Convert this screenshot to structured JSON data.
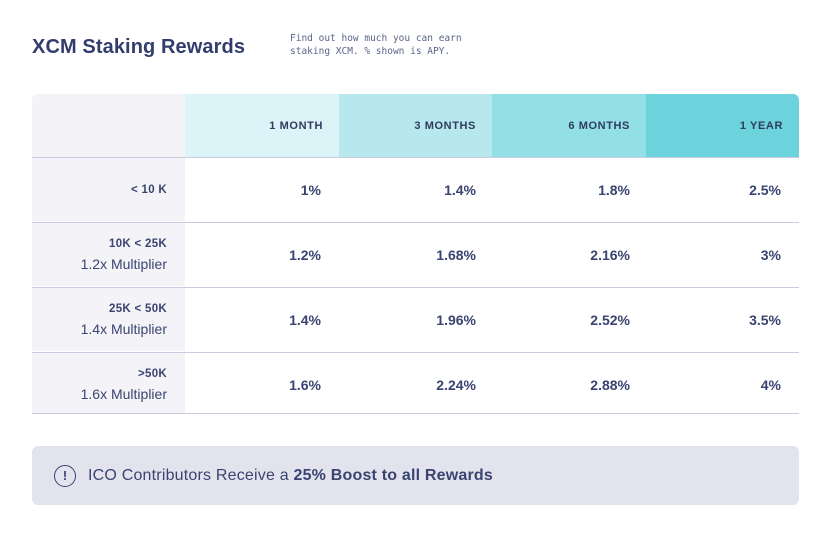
{
  "header": {
    "title": "XCM Staking Rewards",
    "subtitle_line1": "Find out how much you can earn",
    "subtitle_line2": "staking XCM. % shown is APY."
  },
  "table": {
    "columns": [
      "1 MONTH",
      "3 MONTHS",
      "6 MONTHS",
      "1 YEAR"
    ],
    "column_colors": [
      "#dcf4f7",
      "#b7e8ee",
      "#93dfe6",
      "#6cd2dc"
    ],
    "rows": [
      {
        "range": "< 10 K",
        "multiplier": "",
        "values": [
          "1%",
          "1.4%",
          "1.8%",
          "2.5%"
        ]
      },
      {
        "range": "10K < 25K",
        "multiplier": "1.2x Multiplier",
        "values": [
          "1.2%",
          "1.68%",
          "2.16%",
          "3%"
        ]
      },
      {
        "range": "25K < 50K",
        "multiplier": "1.4x Multiplier",
        "values": [
          "1.4%",
          "1.96%",
          "2.52%",
          "3.5%"
        ]
      },
      {
        "range": ">50K",
        "multiplier": "1.6x Multiplier",
        "values": [
          "1.6%",
          "2.24%",
          "2.88%",
          "4%"
        ]
      }
    ]
  },
  "notice": {
    "icon": "exclamation-circle-icon",
    "text_prefix": "ICO Contributors Receive a ",
    "text_bold": "25% Boost to all Rewards"
  }
}
